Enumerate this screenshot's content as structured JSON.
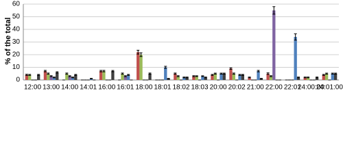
{
  "chart_data": {
    "type": "bar",
    "y_label": "% of the total",
    "categories": [
      "12:00",
      "13:00",
      "14:00",
      "14:01",
      "16:00",
      "16:01",
      "18:00",
      "18:01",
      "18:02",
      "18:03",
      "20:00",
      "20:02",
      "21:00",
      "22:00",
      "22:01",
      "24:00:00",
      "24:01:00"
    ],
    "series": [
      {
        "color": "#c0504d",
        "values": [
          4,
          7,
          0,
          0,
          7,
          0,
          22,
          0,
          5,
          3,
          4,
          9,
          2,
          5,
          0,
          2,
          4
        ],
        "errors": [
          0.5,
          0.6,
          0,
          0,
          0.6,
          0,
          1.5,
          0,
          0.5,
          0.4,
          0.4,
          0.6,
          0.3,
          0.6,
          0,
          0.3,
          0.4
        ]
      },
      {
        "color": "#9bbb59",
        "values": [
          4,
          5,
          5,
          0,
          7,
          5,
          20,
          0,
          3,
          3,
          5,
          5,
          0,
          3,
          0,
          2,
          5
        ],
        "errors": [
          0.4,
          0.5,
          0.5,
          0,
          0.6,
          0.5,
          1.5,
          0,
          0.4,
          0.3,
          0.4,
          0.5,
          0,
          0.4,
          0,
          0.3,
          0.4
        ]
      },
      {
        "color": "#8064a2",
        "values": [
          0,
          3,
          3,
          0,
          0,
          3,
          0,
          0,
          0,
          0,
          0,
          0,
          0,
          55,
          0,
          0,
          0
        ],
        "errors": [
          0,
          0.4,
          0.4,
          0,
          0,
          0.4,
          0,
          0,
          0,
          0,
          0,
          0,
          0,
          3,
          0,
          0,
          0
        ]
      },
      {
        "color": "#4f81bd",
        "values": [
          0,
          2,
          2,
          1,
          0,
          4,
          0,
          10,
          2,
          3,
          5,
          4,
          7,
          0,
          34,
          0,
          5
        ],
        "errors": [
          0,
          0.3,
          0.3,
          0.2,
          0,
          0.4,
          0,
          0.8,
          0.3,
          0.3,
          0.4,
          0.4,
          0.6,
          0,
          2.5,
          0,
          0.4
        ]
      },
      {
        "color": "#404040",
        "values": [
          4,
          6,
          4,
          0,
          7,
          0,
          5,
          1,
          2,
          2,
          5,
          4,
          1,
          0,
          2,
          2,
          5
        ],
        "errors": [
          0.4,
          0.5,
          0.4,
          0,
          0.5,
          0,
          0.5,
          0.2,
          0.3,
          0.3,
          0.4,
          0.4,
          0.2,
          0,
          0.3,
          0.3,
          0.4
        ]
      }
    ],
    "ylim": [
      0,
      60
    ],
    "yticks": [
      0,
      10,
      20,
      30,
      40,
      50,
      60
    ],
    "grid": true
  }
}
